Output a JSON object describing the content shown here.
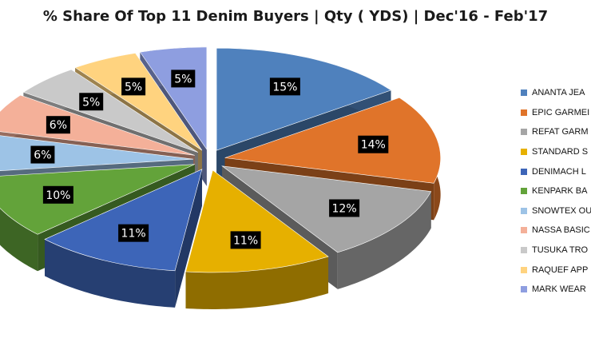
{
  "chart_data": {
    "type": "pie",
    "title": "% Share Of Top 11 Denim Buyers | Qty ( YDS) | Dec'16 - Feb'17",
    "slices": [
      {
        "name": "ANANTA JEA",
        "value": 15,
        "label": "15%",
        "color": "#4f81bd"
      },
      {
        "name": "EPIC GARMEI",
        "value": 14,
        "label": "14%",
        "color": "#e0742a"
      },
      {
        "name": "REFAT GARM",
        "value": 12,
        "label": "12%",
        "color": "#a5a5a5"
      },
      {
        "name": "STANDARD S",
        "value": 11,
        "label": "11%",
        "color": "#e6b000"
      },
      {
        "name": "DENIMACH L",
        "value": 11,
        "label": "11%",
        "color": "#3d65b8"
      },
      {
        "name": "KENPARK BA",
        "value": 10,
        "label": "10%",
        "color": "#63a33a"
      },
      {
        "name": "SNOWTEX OU",
        "value": 6,
        "label": "6%",
        "color": "#9dc3e6"
      },
      {
        "name": "NASSA BASIC",
        "value": 6,
        "label": "6%",
        "color": "#f4b099"
      },
      {
        "name": "TUSUKA TRO",
        "value": 5,
        "label": "5%",
        "color": "#c9c9c9"
      },
      {
        "name": "RAQUEF APP",
        "value": 5,
        "label": "5%",
        "color": "#ffd37f"
      },
      {
        "name": "MARK WEAR",
        "value": 5,
        "label": "5%",
        "color": "#8e9ee0"
      }
    ],
    "legend_position": "right",
    "style": "3d-exploded"
  }
}
